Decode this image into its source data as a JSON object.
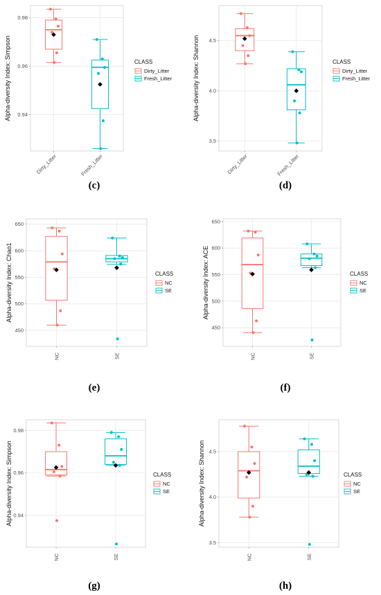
{
  "colors": {
    "red": "#F8766D",
    "teal": "#00BFC4",
    "mean": "#000000",
    "grid": "#ebebeb",
    "border": "#cfcfcf"
  },
  "chart_data": [
    {
      "id": "c",
      "type": "box",
      "panel_label": "(c)",
      "ylabel": "Alpha-diversity Index: Simpson",
      "ylim": [
        0.925,
        0.985
      ],
      "yticks": [
        0.94,
        0.96,
        0.98
      ],
      "ytick_labels": [
        "0.94",
        "0.96",
        "0.98"
      ],
      "categories": [
        "Dirty_Litter",
        "Fresh_Litter"
      ],
      "legend": {
        "title": "CLASS",
        "entries": [
          "Dirty_Litter",
          "Fresh_Litter"
        ]
      },
      "boxes": [
        {
          "min": 0.9615,
          "q1": 0.967,
          "median": 0.975,
          "q3": 0.979,
          "max": 0.9835,
          "mean": 0.973,
          "points": [
            0.9835,
            0.9795,
            0.9765,
            0.974,
            0.9655,
            0.9615
          ]
        },
        {
          "min": 0.926,
          "q1": 0.9425,
          "median": 0.9595,
          "q3": 0.9625,
          "max": 0.971,
          "mean": 0.9525,
          "points": [
            0.971,
            0.963,
            0.9595,
            0.957,
            0.9375,
            0.926
          ]
        }
      ]
    },
    {
      "id": "d",
      "type": "box",
      "panel_label": "(d)",
      "ylabel": "Alpha-diversity Index: Shannon",
      "ylim": [
        3.4,
        4.85
      ],
      "yticks": [
        3.5,
        4.0,
        4.5
      ],
      "ytick_labels": [
        "3.5",
        "4.0",
        "4.5"
      ],
      "categories": [
        "Dirty_Litter",
        "Fresh_Litter"
      ],
      "legend": {
        "title": "CLASS",
        "entries": [
          "Dirty_Litter",
          "Fresh_Litter"
        ]
      },
      "boxes": [
        {
          "min": 4.27,
          "q1": 4.4,
          "median": 4.55,
          "q3": 4.62,
          "max": 4.77,
          "mean": 4.52,
          "points": [
            4.77,
            4.63,
            4.55,
            4.45,
            4.35,
            4.27
          ]
        },
        {
          "min": 3.48,
          "q1": 3.81,
          "median": 4.06,
          "q3": 4.22,
          "max": 4.39,
          "mean": 4.0,
          "points": [
            4.39,
            4.21,
            4.19,
            3.9,
            3.78,
            3.48
          ]
        }
      ]
    },
    {
      "id": "e",
      "type": "box",
      "panel_label": "(e)",
      "ylabel": "Alpha-diversity Index: Chao1",
      "ylim": [
        420,
        660
      ],
      "yticks": [
        450,
        500,
        550,
        600,
        650
      ],
      "ytick_labels": [
        "450",
        "500",
        "550",
        "600",
        "650"
      ],
      "categories": [
        "NC",
        "SE"
      ],
      "legend": {
        "title": "CLASS",
        "entries": [
          "NC",
          "SE"
        ]
      },
      "boxes": [
        {
          "min": 460,
          "q1": 507,
          "median": 579,
          "q3": 627,
          "max": 643,
          "mean": 564,
          "points": [
            643,
            637,
            594,
            566,
            487,
            460
          ]
        },
        {
          "min": 574,
          "q1": 579,
          "median": 585,
          "q3": 591,
          "max": 624,
          "mean": 568,
          "points": [
            624,
            590,
            587,
            585,
            575,
            434
          ]
        }
      ]
    },
    {
      "id": "f",
      "type": "box",
      "panel_label": "(f)",
      "ylabel": "Alpha-diversity Index: ACE",
      "ylim": [
        415,
        655
      ],
      "yticks": [
        450,
        500,
        550,
        600,
        650
      ],
      "ytick_labels": [
        "450",
        "500",
        "550",
        "600",
        "650"
      ],
      "categories": [
        "NC",
        "SE"
      ],
      "legend": {
        "title": "CLASS",
        "entries": [
          "NC",
          "SE"
        ]
      },
      "boxes": [
        {
          "min": 441,
          "q1": 486,
          "median": 569,
          "q3": 619,
          "max": 632,
          "mean": 551,
          "points": [
            632,
            630,
            587,
            553,
            463,
            441
          ]
        },
        {
          "min": 563,
          "q1": 567,
          "median": 581,
          "q3": 589,
          "max": 608,
          "mean": 559,
          "points": [
            608,
            589,
            585,
            580,
            563,
            427
          ]
        }
      ]
    },
    {
      "id": "g",
      "type": "box",
      "panel_label": "(g)",
      "ylabel": "Alpha-diversity Index: Simpson",
      "ylim": [
        0.925,
        0.985
      ],
      "yticks": [
        0.94,
        0.96,
        0.98
      ],
      "ytick_labels": [
        "0.94",
        "0.96",
        "0.98"
      ],
      "categories": [
        "NC",
        "SE"
      ],
      "legend": {
        "title": "CLASS",
        "entries": [
          "NC",
          "SE"
        ]
      },
      "boxes": [
        {
          "min": 0.9585,
          "q1": 0.959,
          "median": 0.9615,
          "q3": 0.97,
          "max": 0.9835,
          "mean": 0.9625,
          "points": [
            0.9835,
            0.973,
            0.963,
            0.9605,
            0.9585,
            0.9375
          ]
        },
        {
          "min": 0.9635,
          "q1": 0.964,
          "median": 0.968,
          "q3": 0.976,
          "max": 0.979,
          "mean": 0.9635,
          "points": [
            0.979,
            0.977,
            0.971,
            0.965,
            0.9635,
            0.9265
          ]
        }
      ]
    },
    {
      "id": "h",
      "type": "box",
      "panel_label": "(h)",
      "ylabel": "Alpha-diversity Index: Shannon",
      "ylim": [
        3.45,
        4.85
      ],
      "yticks": [
        3.5,
        4.0,
        4.5
      ],
      "ytick_labels": [
        "3.5",
        "4.0",
        "4.5"
      ],
      "categories": [
        "NC",
        "SE"
      ],
      "legend": {
        "title": "CLASS",
        "entries": [
          "NC",
          "SE"
        ]
      },
      "boxes": [
        {
          "min": 3.78,
          "q1": 3.99,
          "median": 4.29,
          "q3": 4.5,
          "max": 4.78,
          "mean": 4.27,
          "points": [
            4.78,
            4.55,
            4.37,
            4.22,
            3.9,
            3.78
          ]
        },
        {
          "min": 4.23,
          "q1": 4.26,
          "median": 4.34,
          "q3": 4.52,
          "max": 4.64,
          "mean": 4.27,
          "points": [
            4.64,
            4.58,
            4.4,
            4.25,
            4.23,
            3.48
          ]
        }
      ]
    }
  ]
}
